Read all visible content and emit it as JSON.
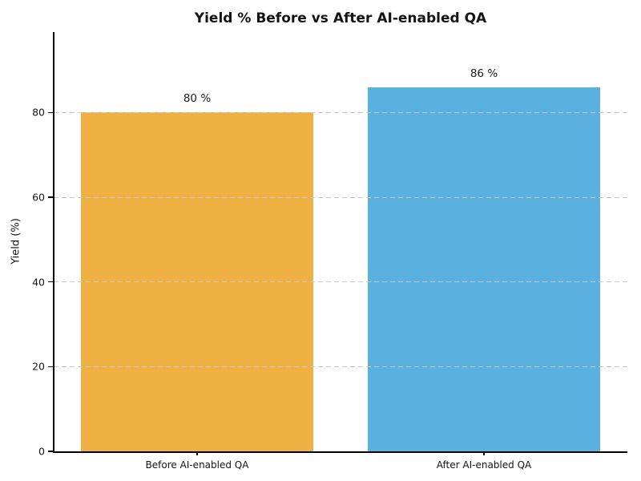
{
  "chart_data": {
    "type": "bar",
    "title": "Yield % Before vs After AI-enabled QA",
    "ylabel": "Yield (%)",
    "xlabel": "",
    "categories": [
      "Before AI-enabled QA",
      "After AI-enabled QA"
    ],
    "values": [
      80,
      86
    ],
    "bar_labels": [
      "80 %",
      "86 %"
    ],
    "bar_colors": [
      "#F0B144",
      "#5AB1E0"
    ],
    "ylim": [
      0,
      99
    ],
    "yticks": [
      0,
      20,
      40,
      60,
      80
    ],
    "grid": "horizontal dashed gridlines at yticks, drawn over bars",
    "legend_position": "none",
    "spines": "left and bottom only"
  },
  "colors": {
    "bar_before": "#F0B144",
    "bar_after": "#5AB1E0",
    "grid": "#c9c9c9",
    "axis": "#000000",
    "text": "#141414",
    "background": "#ffffff"
  }
}
